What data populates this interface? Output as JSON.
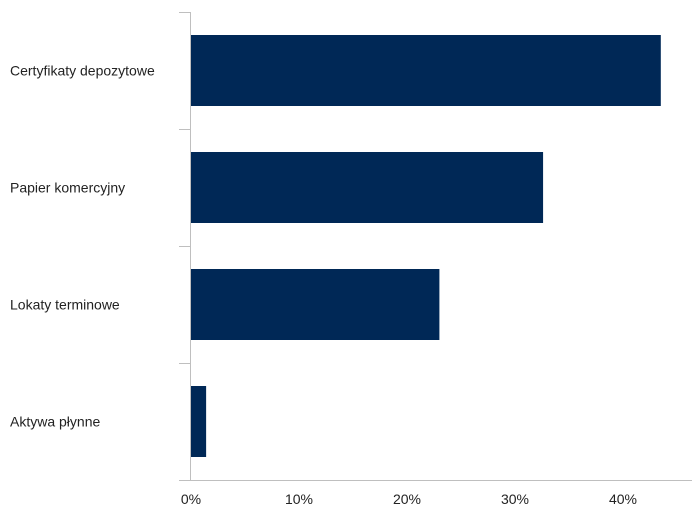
{
  "chart_data": {
    "type": "bar",
    "orientation": "horizontal",
    "categories": [
      "Certyfikaty depozytowe",
      "Papier komercyjny",
      "Lokaty terminowe",
      "Aktywa płynne"
    ],
    "values": [
      43.5,
      32.6,
      23.0,
      1.4
    ],
    "xlim": [
      0,
      50
    ],
    "x_ticks": [
      0,
      10,
      20,
      30,
      40
    ],
    "x_tick_labels": [
      "0%",
      "10%",
      "20%",
      "30%",
      "40%"
    ],
    "title": "",
    "xlabel": "",
    "ylabel": "",
    "grid": false,
    "bar_color": "#002856",
    "axis_color": "#bfbfbf"
  }
}
